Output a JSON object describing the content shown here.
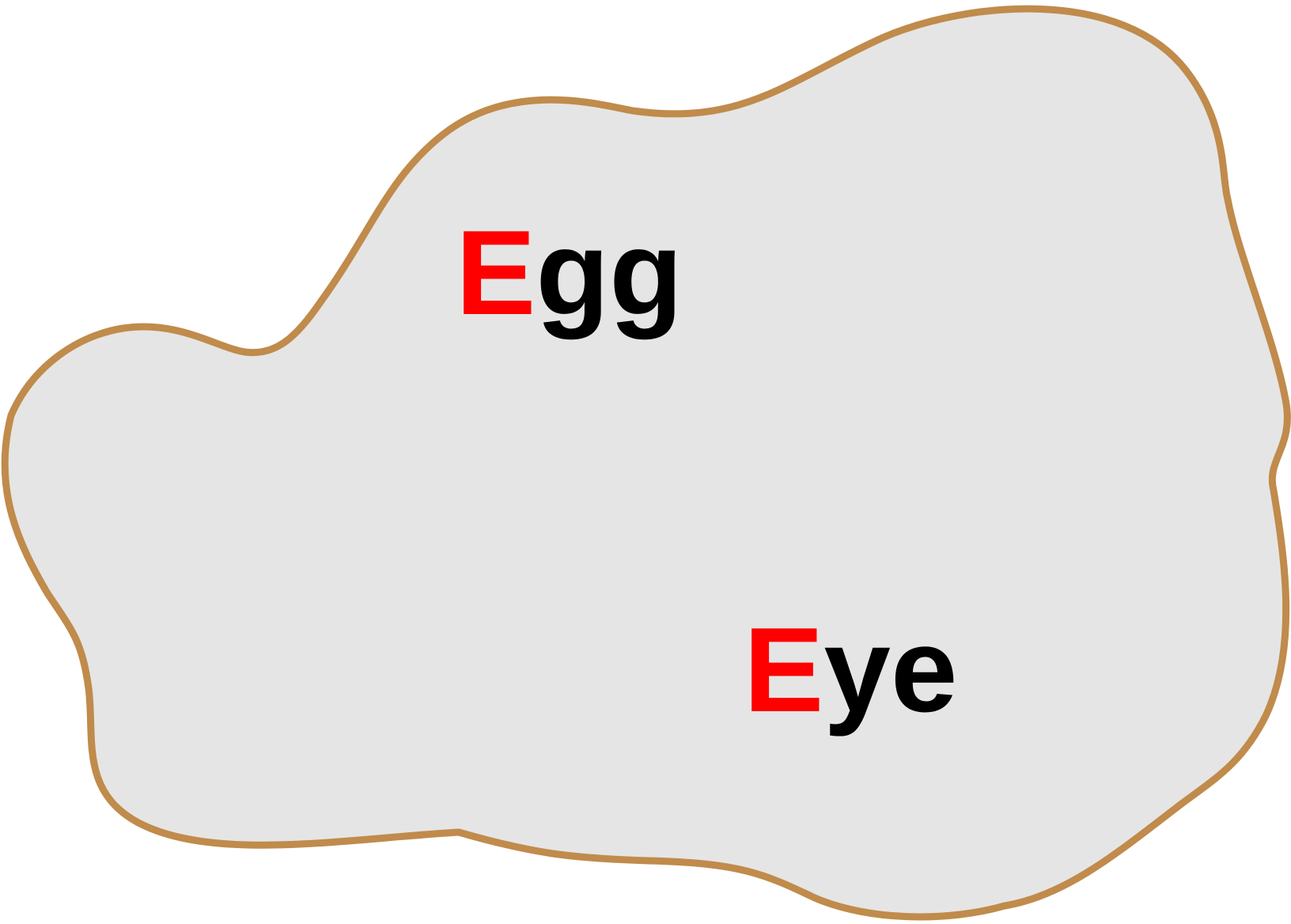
{
  "blob": {
    "fill_color": "#e5e5e5",
    "stroke_color": "#c08b4b"
  },
  "words": [
    {
      "id": "egg",
      "first_letter": "E",
      "rest": "gg",
      "first_letter_color": "#ff0000",
      "rest_color": "#000000"
    },
    {
      "id": "eye",
      "first_letter": "E",
      "rest": "ye",
      "first_letter_color": "#ff0000",
      "rest_color": "#000000"
    }
  ]
}
